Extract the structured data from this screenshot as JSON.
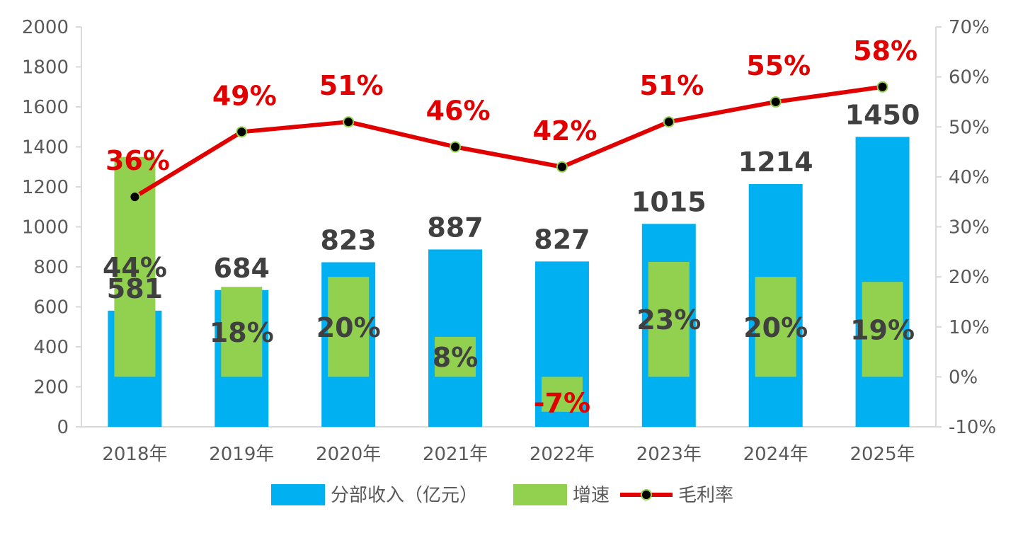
{
  "chart_data": {
    "type": "bar",
    "categories": [
      "2018年",
      "2019年",
      "2020年",
      "2021年",
      "2022年",
      "2023年",
      "2024年",
      "2025年"
    ],
    "series": [
      {
        "name": "分部收入（亿元）",
        "type": "bar",
        "axis": "left",
        "color": "#00b0f0",
        "values": [
          581,
          684,
          823,
          887,
          827,
          1015,
          1214,
          1450
        ],
        "labels": [
          "581",
          "684",
          "823",
          "887",
          "827",
          "1015",
          "1214",
          "1450"
        ]
      },
      {
        "name": "增速",
        "type": "bar",
        "axis": "right",
        "color": "#92d050",
        "values": [
          44,
          18,
          20,
          8,
          -7,
          23,
          20,
          19
        ],
        "labels": [
          "44%",
          "18%",
          "20%",
          "8%",
          "-7%",
          "23%",
          "20%",
          "19%"
        ]
      },
      {
        "name": "毛利率",
        "type": "line",
        "axis": "right",
        "color": "#e00000",
        "marker_color": "#000000",
        "values": [
          36,
          49,
          51,
          46,
          42,
          51,
          55,
          58
        ],
        "labels": [
          "36%",
          "49%",
          "51%",
          "46%",
          "42%",
          "51%",
          "55%",
          "58%"
        ]
      }
    ],
    "y_left": {
      "min": 0,
      "max": 2000,
      "ticks": [
        "0",
        "200",
        "400",
        "600",
        "800",
        "1000",
        "1200",
        "1400",
        "1600",
        "1800",
        "2000"
      ]
    },
    "y_right": {
      "min": -10,
      "max": 70,
      "ticks": [
        "-10%",
        "0%",
        "10%",
        "20%",
        "30%",
        "40%",
        "50%",
        "60%",
        "70%"
      ]
    },
    "legend_position": "bottom",
    "grid": false
  }
}
